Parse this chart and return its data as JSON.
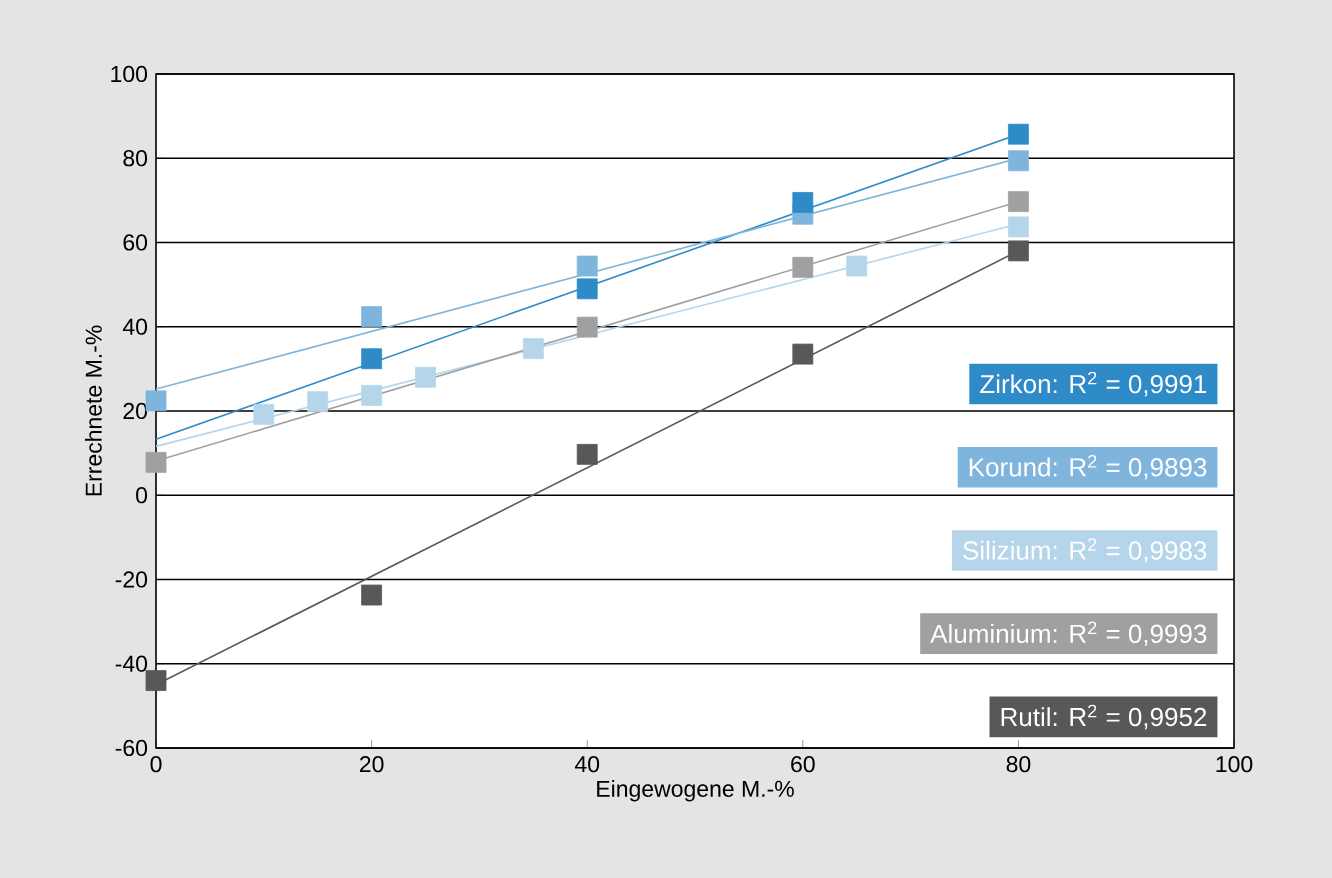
{
  "chart_data": {
    "type": "scatter",
    "xlabel": "Eingewogene M.-%",
    "ylabel": "Errechnete M.-%",
    "xlim": [
      0,
      100
    ],
    "ylim": [
      -60,
      100
    ],
    "xticks": [
      0,
      20,
      40,
      60,
      80,
      100
    ],
    "yticks": [
      -60,
      -40,
      -20,
      0,
      20,
      40,
      60,
      80,
      100
    ],
    "grid": "y",
    "marker": "square",
    "legend": "right",
    "series": [
      {
        "type": "line",
        "marker": "none",
        "color": "#2f8bc8",
        "x": [
          0,
          80
        ],
        "values": [
          13.3,
          85.7
        ]
      },
      {
        "type": "line",
        "marker": "none",
        "color": "#7fb5dc",
        "x": [
          0,
          80
        ],
        "values": [
          25.2,
          80
        ]
      },
      {
        "type": "line",
        "marker": "none",
        "color": "#b5d5ea",
        "x": [
          0,
          80
        ],
        "values": [
          11.6,
          64.4
        ]
      },
      {
        "type": "line",
        "marker": "none",
        "color": "#a0a0a2",
        "x": [
          0,
          80
        ],
        "values": [
          8.1,
          69.7
        ]
      },
      {
        "type": "line",
        "marker": "none",
        "color": "#58585a",
        "x": [
          0,
          80
        ],
        "values": [
          -45,
          58
        ]
      },
      {
        "name": "Rutil: R$^{2}$ = 0,9952",
        "color": "#58585a",
        "x": [
          0,
          20,
          40,
          60,
          80
        ],
        "values": [
          -44,
          -23.7,
          9.7,
          33.5,
          58
        ]
      },
      {
        "name": "Aluminium: R$^{2}$ = 0,9993",
        "color": "#a0a0a2",
        "x": [
          0,
          40,
          60,
          80
        ],
        "values": [
          7.8,
          39.9,
          54.1,
          69.7
        ]
      },
      {
        "name": "Silizium: R$^{2}$ = 0,9983",
        "color": "#b5d5ea",
        "x": [
          10,
          15,
          20,
          25,
          35,
          65,
          80
        ],
        "values": [
          19.2,
          22.2,
          23.7,
          28,
          34.8,
          54.4,
          63.7
        ]
      },
      {
        "name": "Korund: R$^{2}$ = 0,9893",
        "color": "#7fb5dc",
        "x": [
          0,
          20,
          40,
          60,
          80
        ],
        "values": [
          22.4,
          42.4,
          54.4,
          66.7,
          79.4
        ]
      },
      {
        "name": "Zirkon: R$^{2}$ = 0,9991",
        "color": "#2f8bc8",
        "x": [
          20,
          40,
          60,
          80
        ],
        "values": [
          32.4,
          49,
          69.5,
          85.7
        ]
      }
    ]
  }
}
